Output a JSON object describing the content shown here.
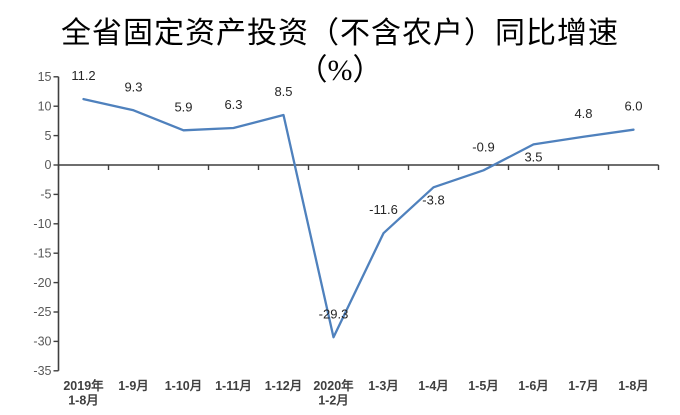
{
  "chart_data": {
    "type": "line",
    "title": "全省固定资产投资（不含农户）同比增速",
    "title_unit": "（%）",
    "categories": [
      "2019年\n1-8月",
      "1-9月",
      "1-10月",
      "1-11月",
      "1-12月",
      "2020年\n1-2月",
      "1-3月",
      "1-4月",
      "1-5月",
      "1-6月",
      "1-7月",
      "1-8月"
    ],
    "values": [
      11.2,
      9.3,
      5.9,
      6.3,
      8.5,
      -29.3,
      -11.6,
      -3.8,
      -0.9,
      3.5,
      4.8,
      6.0
    ],
    "data_labels": [
      "11.2",
      "9.3",
      "5.9",
      "6.3",
      "8.5",
      "-29.3",
      "-11.6",
      "-3.8",
      "-0.9",
      "3.5",
      "4.8",
      "6.0"
    ],
    "label_positions": [
      "above",
      "above",
      "above",
      "above",
      "above",
      "above",
      "above",
      "below",
      "above",
      "below",
      "above",
      "above"
    ],
    "y_ticks": [
      15,
      10,
      5,
      0,
      -5,
      -10,
      -15,
      -20,
      -25,
      -30,
      -35
    ],
    "ylim": [
      -35,
      15
    ],
    "grid": false,
    "legend": "none",
    "xlabel": "",
    "ylabel": "",
    "colors": {
      "line": "#4F81BD",
      "axis": "#3F3F3F",
      "y_tick_label": "#595959",
      "x_tick_label": "#404040",
      "data_label": "#262626"
    }
  }
}
